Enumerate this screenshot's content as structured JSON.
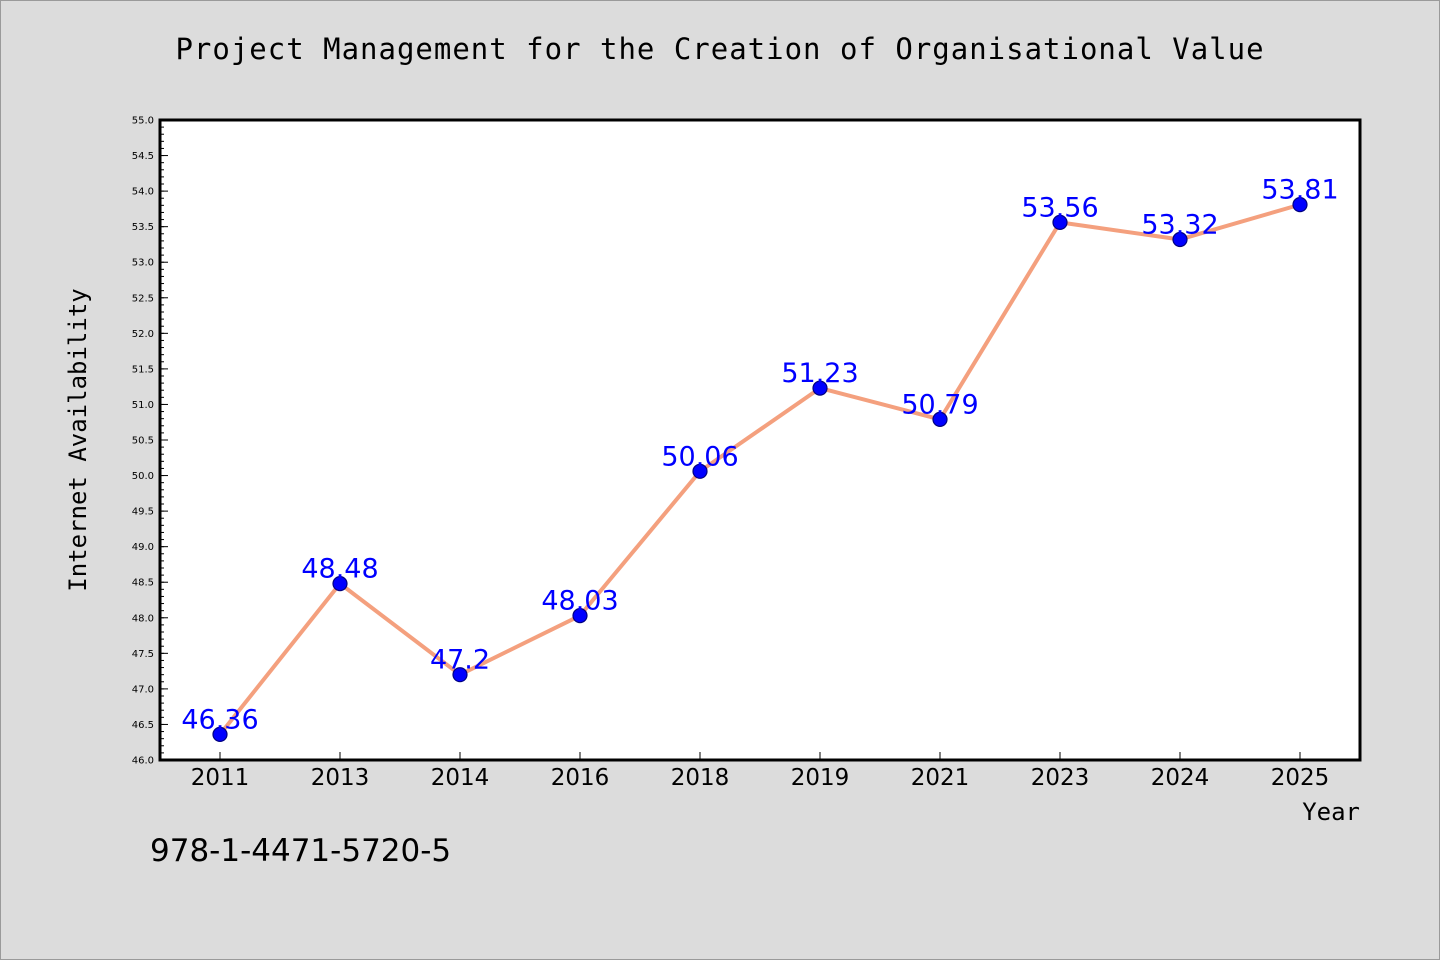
{
  "chart_data": {
    "type": "line",
    "title": "Project Management for the Creation of Organisational Value",
    "xlabel": "Year",
    "ylabel": "Internet Availability",
    "categories": [
      "2011",
      "2013",
      "2014",
      "2016",
      "2018",
      "2019",
      "2021",
      "2023",
      "2024",
      "2025"
    ],
    "series": [
      {
        "values": [
          46.36,
          48.48,
          47.2,
          48.03,
          50.06,
          51.23,
          50.79,
          53.56,
          53.32,
          53.81
        ],
        "labels": [
          "46.36",
          "48.48",
          "47.2",
          "48.03",
          "50.06",
          "51.23",
          "50.79",
          "53.56",
          "53.32",
          "53.81"
        ]
      }
    ],
    "ylim": [
      46.0,
      55.0
    ],
    "yticks": [
      "46.0",
      "46.5",
      "47.0",
      "47.5",
      "48.0",
      "48.5",
      "49.0",
      "49.5",
      "50.0",
      "50.5",
      "51.0",
      "51.5",
      "52.0",
      "52.5",
      "53.0",
      "53.5",
      "54.0",
      "54.5",
      "55.0"
    ],
    "grid": false,
    "legend": "none",
    "colors": {
      "line": "#f4a07e",
      "marker": "#0000ff",
      "marker_edge": "#000080",
      "data_label": "#0000ff",
      "plot_background": "#ffffff",
      "page_background": "#dcdcdc"
    }
  },
  "footer": {
    "isbn": "978-1-4471-5720-5"
  }
}
